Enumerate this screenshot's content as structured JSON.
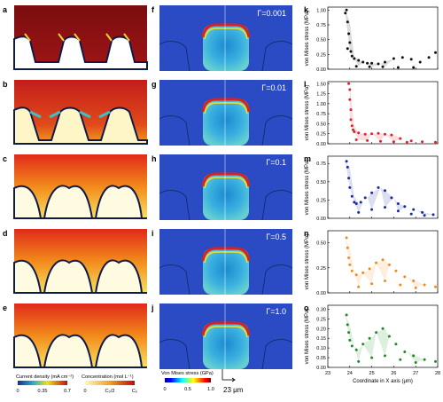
{
  "panel_letters": [
    "a",
    "b",
    "c",
    "d",
    "e",
    "f",
    "g",
    "h",
    "i",
    "j",
    "k",
    "l",
    "m",
    "n",
    "o"
  ],
  "gamma_labels": [
    "Γ=0.001",
    "Γ=0.01",
    "Γ=0.1",
    "Γ=0.5",
    "Γ=1.0"
  ],
  "colorbars": {
    "current": {
      "label": "Current density (mA cm⁻²)",
      "ticks": [
        "0",
        "0.35",
        "0.7"
      ]
    },
    "concentration": {
      "label": "Concentration (mol L⁻¹)",
      "ticks": [
        "0",
        "C₀/2",
        "C₀"
      ]
    },
    "stress": {
      "label": "Von Mises stress (GPa)",
      "ticks": [
        "0",
        "0.5",
        "1.0"
      ]
    }
  },
  "scalebar": {
    "label": "23 μm"
  },
  "colors": {
    "k": "#111111",
    "l": "#e0202a",
    "m": "#1a2a9a",
    "n": "#f08a1c",
    "o": "#1f8a2a"
  },
  "chart_data": [
    {
      "type": "scatter",
      "panel": "k",
      "ylabel": "von Mises stress (MPa)",
      "yticks": [
        "0.00",
        "0.25",
        "0.50",
        "0.75",
        "1.00"
      ],
      "ylim": [
        0,
        1.05
      ],
      "xlim": [
        23,
        28
      ],
      "series": [
        {
          "values": [
            [
              23.8,
              0.95
            ],
            [
              23.85,
              1.0
            ],
            [
              23.9,
              0.8
            ],
            [
              23.95,
              0.6
            ],
            [
              24.0,
              0.45
            ],
            [
              23.9,
              0.35
            ],
            [
              24.05,
              0.3
            ],
            [
              24.1,
              0.22
            ],
            [
              24.2,
              0.18
            ],
            [
              24.4,
              0.15
            ],
            [
              24.6,
              0.12
            ],
            [
              24.8,
              0.1
            ],
            [
              25.0,
              0.1
            ],
            [
              25.3,
              0.09
            ],
            [
              25.6,
              0.12
            ],
            [
              26.0,
              0.18
            ],
            [
              26.4,
              0.2
            ],
            [
              26.8,
              0.17
            ],
            [
              27.2,
              0.12
            ],
            [
              27.6,
              0.2
            ],
            [
              27.9,
              0.28
            ],
            [
              24.3,
              0.05
            ],
            [
              24.9,
              0.04
            ],
            [
              25.5,
              0.04
            ],
            [
              26.2,
              0.03
            ],
            [
              26.9,
              0.03
            ]
          ]
        }
      ]
    },
    {
      "type": "scatter",
      "panel": "l",
      "ylabel": "von Mises stress (MPa)",
      "yticks": [
        "0.00",
        "0.25",
        "0.50",
        "0.75",
        "1.00",
        "1.25",
        "1.50"
      ],
      "ylim": [
        0,
        1.55
      ],
      "xlim": [
        23,
        28
      ],
      "series": [
        {
          "values": [
            [
              23.95,
              1.5
            ],
            [
              24.0,
              1.35
            ],
            [
              24.0,
              1.1
            ],
            [
              24.05,
              0.85
            ],
            [
              24.05,
              0.6
            ],
            [
              24.1,
              0.45
            ],
            [
              24.15,
              0.35
            ],
            [
              24.2,
              0.3
            ],
            [
              24.4,
              0.27
            ],
            [
              24.7,
              0.24
            ],
            [
              25.0,
              0.25
            ],
            [
              25.3,
              0.26
            ],
            [
              25.6,
              0.24
            ],
            [
              25.9,
              0.22
            ],
            [
              26.3,
              0.13
            ],
            [
              26.8,
              0.07
            ],
            [
              27.3,
              0.05
            ],
            [
              27.9,
              0.04
            ],
            [
              24.3,
              0.1
            ],
            [
              24.8,
              0.08
            ],
            [
              25.4,
              0.06
            ],
            [
              26.0,
              0.05
            ],
            [
              26.6,
              0.04
            ]
          ]
        }
      ]
    },
    {
      "type": "scatter",
      "panel": "m",
      "ylabel": "von Mises stress (MPa)",
      "yticks": [
        "0.00",
        "0.25",
        "0.50",
        "0.75"
      ],
      "ylim": [
        0,
        0.85
      ],
      "xlim": [
        23,
        28
      ],
      "series": [
        {
          "values": [
            [
              23.85,
              0.78
            ],
            [
              23.9,
              0.7
            ],
            [
              23.95,
              0.55
            ],
            [
              24.0,
              0.42
            ],
            [
              24.1,
              0.3
            ],
            [
              24.2,
              0.22
            ],
            [
              24.3,
              0.2
            ],
            [
              24.5,
              0.22
            ],
            [
              24.7,
              0.28
            ],
            [
              25.0,
              0.35
            ],
            [
              25.3,
              0.42
            ],
            [
              25.6,
              0.38
            ],
            [
              25.9,
              0.28
            ],
            [
              26.2,
              0.2
            ],
            [
              26.5,
              0.16
            ],
            [
              26.9,
              0.12
            ],
            [
              27.3,
              0.08
            ],
            [
              27.8,
              0.05
            ],
            [
              24.4,
              0.08
            ],
            [
              25.0,
              0.12
            ],
            [
              25.6,
              0.15
            ],
            [
              26.2,
              0.1
            ],
            [
              26.8,
              0.06
            ],
            [
              27.4,
              0.04
            ]
          ]
        }
      ]
    },
    {
      "type": "scatter",
      "panel": "n",
      "ylabel": "von Mises stress (MPa)",
      "yticks": [
        "0.00",
        "0.25",
        "0.50"
      ],
      "ylim": [
        0,
        0.62
      ],
      "xlim": [
        23,
        28
      ],
      "series": [
        {
          "values": [
            [
              23.85,
              0.55
            ],
            [
              23.9,
              0.45
            ],
            [
              23.95,
              0.35
            ],
            [
              24.0,
              0.28
            ],
            [
              24.1,
              0.22
            ],
            [
              24.3,
              0.18
            ],
            [
              24.6,
              0.2
            ],
            [
              24.9,
              0.24
            ],
            [
              25.2,
              0.3
            ],
            [
              25.5,
              0.33
            ],
            [
              25.8,
              0.28
            ],
            [
              26.1,
              0.22
            ],
            [
              26.5,
              0.16
            ],
            [
              26.9,
              0.12
            ],
            [
              27.4,
              0.08
            ],
            [
              27.9,
              0.06
            ],
            [
              24.4,
              0.06
            ],
            [
              25.0,
              0.09
            ],
            [
              25.6,
              0.12
            ],
            [
              26.3,
              0.08
            ],
            [
              27.0,
              0.05
            ]
          ]
        }
      ]
    },
    {
      "type": "scatter",
      "panel": "o",
      "ylabel": "von Mises stress (MPa)",
      "yticks": [
        "0.00",
        "0.05",
        "0.10",
        "0.15",
        "0.20",
        "0.25",
        "0.30"
      ],
      "ylim": [
        0,
        0.32
      ],
      "xlim": [
        23,
        28
      ],
      "xticks": [
        "23",
        "24",
        "25",
        "26",
        "27",
        "28"
      ],
      "xlabel": "Coordinate in X axis (μm)",
      "series": [
        {
          "values": [
            [
              23.85,
              0.27
            ],
            [
              23.9,
              0.22
            ],
            [
              23.95,
              0.18
            ],
            [
              24.0,
              0.14
            ],
            [
              24.1,
              0.11
            ],
            [
              24.3,
              0.09
            ],
            [
              24.6,
              0.12
            ],
            [
              24.9,
              0.15
            ],
            [
              25.2,
              0.18
            ],
            [
              25.5,
              0.2
            ],
            [
              25.8,
              0.16
            ],
            [
              26.1,
              0.12
            ],
            [
              26.5,
              0.08
            ],
            [
              26.9,
              0.06
            ],
            [
              27.4,
              0.04
            ],
            [
              27.9,
              0.03
            ],
            [
              24.4,
              0.03
            ],
            [
              25.0,
              0.05
            ],
            [
              25.6,
              0.06
            ],
            [
              26.3,
              0.04
            ],
            [
              27.0,
              0.025
            ]
          ]
        }
      ]
    }
  ]
}
